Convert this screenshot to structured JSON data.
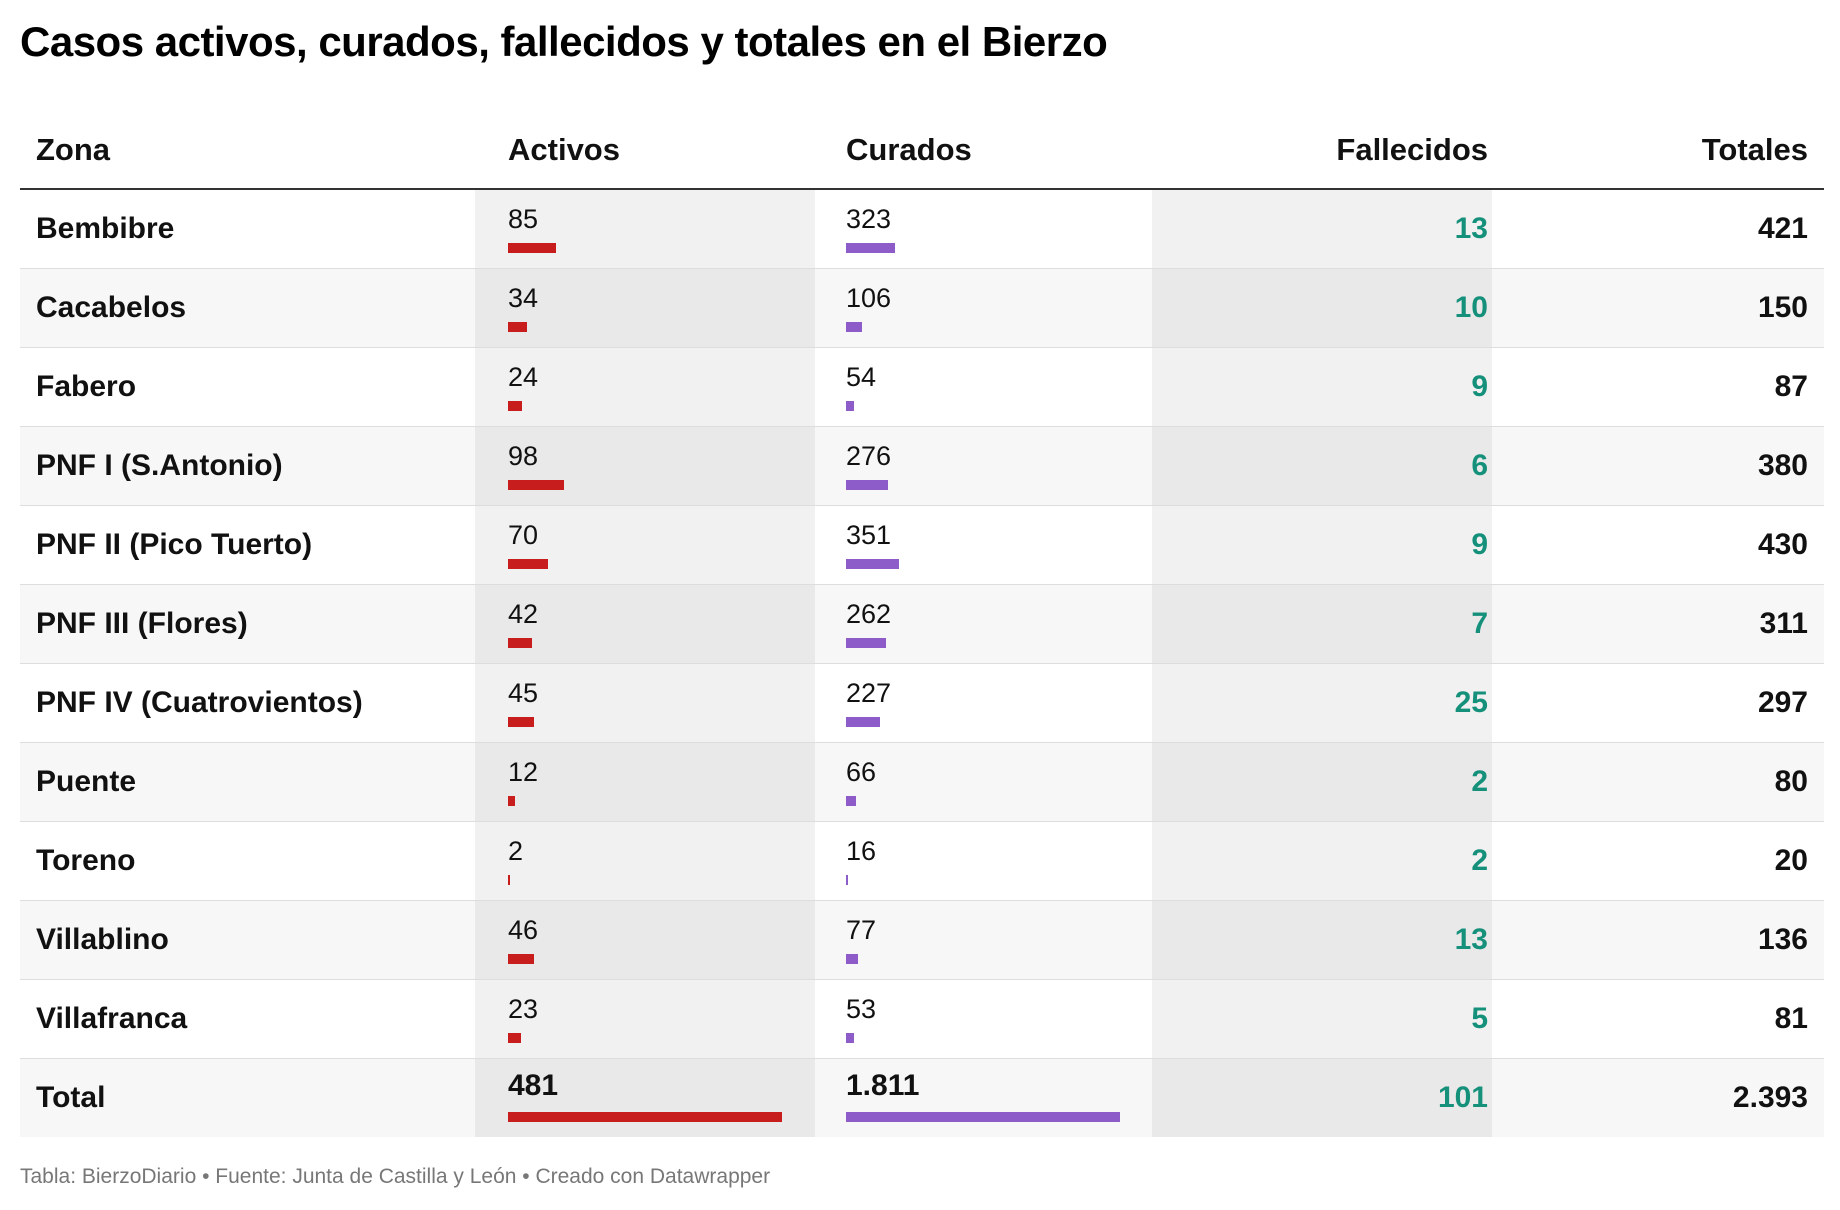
{
  "title": "Casos activos, curados, fallecidos y totales en el Bierzo",
  "headers": {
    "zona": "Zona",
    "activos": "Activos",
    "curados": "Curados",
    "fallecidos": "Fallecidos",
    "totales": "Totales"
  },
  "colors": {
    "activos_bar": "#c71e1d",
    "curados_bar": "#8e5cc8",
    "fallecidos_text": "#15907a"
  },
  "chart_data": {
    "type": "table",
    "columns": [
      "Zona",
      "Activos",
      "Curados",
      "Fallecidos",
      "Totales"
    ],
    "rows": [
      {
        "zona": "Bembibre",
        "activos": 85,
        "curados": 323,
        "fallecidos": 13,
        "totales": 421
      },
      {
        "zona": "Cacabelos",
        "activos": 34,
        "curados": 106,
        "fallecidos": 10,
        "totales": 150
      },
      {
        "zona": "Fabero",
        "activos": 24,
        "curados": 54,
        "fallecidos": 9,
        "totales": 87
      },
      {
        "zona": "PNF I (S.Antonio)",
        "activos": 98,
        "curados": 276,
        "fallecidos": 6,
        "totales": 380
      },
      {
        "zona": "PNF II (Pico Tuerto)",
        "activos": 70,
        "curados": 351,
        "fallecidos": 9,
        "totales": 430
      },
      {
        "zona": "PNF III (Flores)",
        "activos": 42,
        "curados": 262,
        "fallecidos": 7,
        "totales": 311
      },
      {
        "zona": "PNF IV (Cuatrovientos)",
        "activos": 45,
        "curados": 227,
        "fallecidos": 25,
        "totales": 297
      },
      {
        "zona": "Puente",
        "activos": 12,
        "curados": 66,
        "fallecidos": 2,
        "totales": 80
      },
      {
        "zona": "Toreno",
        "activos": 2,
        "curados": 16,
        "fallecidos": 2,
        "totales": 20
      },
      {
        "zona": "Villablino",
        "activos": 46,
        "curados": 77,
        "fallecidos": 13,
        "totales": 136
      },
      {
        "zona": "Villafranca",
        "activos": 23,
        "curados": 53,
        "fallecidos": 5,
        "totales": 81
      },
      {
        "zona": "Total",
        "activos": 481,
        "curados": 1811,
        "fallecidos": 101,
        "totales": 2393
      }
    ],
    "display": {
      "activos": [
        "85",
        "34",
        "24",
        "98",
        "70",
        "42",
        "45",
        "12",
        "2",
        "46",
        "23",
        "481"
      ],
      "curados": [
        "323",
        "106",
        "54",
        "276",
        "351",
        "262",
        "227",
        "66",
        "16",
        "77",
        "53",
        "1.811"
      ],
      "fallecidos": [
        "13",
        "10",
        "9",
        "6",
        "9",
        "7",
        "25",
        "2",
        "2",
        "13",
        "5",
        "101"
      ],
      "totales": [
        "421",
        "150",
        "87",
        "380",
        "430",
        "311",
        "297",
        "80",
        "20",
        "136",
        "81",
        "2.393"
      ]
    }
  },
  "footer": "Tabla: BierzoDiario • Fuente: Junta de Castilla y León • Creado con Datawrapper"
}
